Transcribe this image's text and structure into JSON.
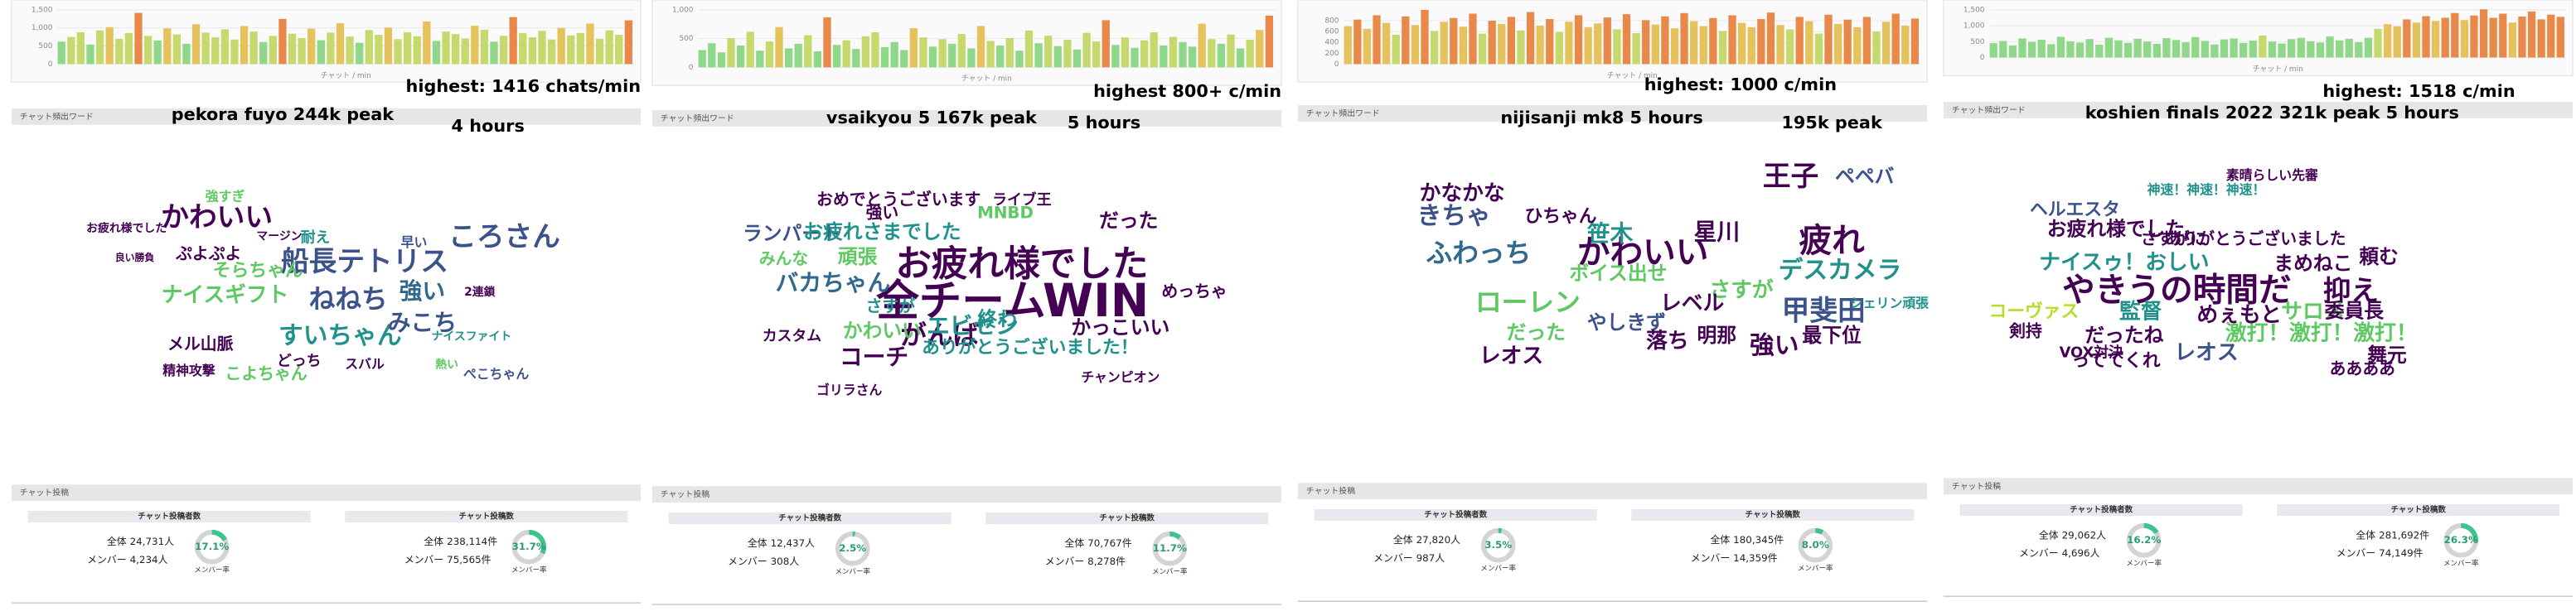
{
  "panels": [
    {
      "titles": [
        "pekora fuyo 244k peak",
        "4 hours"
      ],
      "highest": "highest: 1416 chats/min",
      "chart": {
        "xlabel": "チャット / min",
        "ylim": [
          0,
          1500
        ],
        "yticks": [
          0,
          500,
          {
            "value": 1000,
            "label": "1,000"
          },
          {
            "value": 1500,
            "label": "1,500"
          }
        ],
        "values": [
          620,
          750,
          880,
          540,
          930,
          1020,
          700,
          860,
          1416,
          780,
          650,
          990,
          820,
          560,
          1100,
          870,
          740,
          960,
          680,
          1050,
          900,
          610,
          780,
          1250,
          840,
          720,
          980,
          660,
          870,
          1130,
          760,
          590,
          940,
          810,
          1010,
          690,
          880,
          770,
          1180,
          640,
          900,
          830,
          710,
          1060,
          950,
          620,
          780,
          1300,
          860,
          740,
          920,
          680,
          1000,
          790,
          860,
          1120,
          700,
          930,
          810,
          1210
        ]
      },
      "words_heading": "チャット頻出ワード",
      "words": [
        "船長テトリス",
        "かわいい",
        "ころさん",
        "ねねち",
        "すいちゃん",
        "ナイスギフト",
        "強い",
        "みこち",
        "そらちゃん",
        "メル山脈",
        "こよちゃん",
        "ぷよぷよ",
        "耐え",
        "精神攻撃",
        "スバル",
        "どっち",
        "ぺこちゃん",
        "ナイスファイト",
        "お疲れ様でした",
        "強すぎ",
        "早い",
        "2連鎖",
        "熱い",
        "良い勝負",
        "マージン"
      ],
      "posts_heading": "チャット投稿",
      "cards": [
        {
          "heading": "チャット投稿者数",
          "total_label": "全体",
          "total": "24,731人",
          "member_label": "メンバー",
          "member": "4,234人",
          "rate": {
            "value": 17.1,
            "label": "17.1%"
          },
          "rate_caption": "メンバー率"
        },
        {
          "heading": "チャット投稿数",
          "total_label": "全体",
          "total": "238,114件",
          "member_label": "メンバー",
          "member": "75,565件",
          "rate": {
            "value": 31.7,
            "label": "31.7%"
          },
          "rate_caption": "メンバー率"
        }
      ]
    },
    {
      "titles": [
        "vsaikyou 5 167k peak",
        "5 hours"
      ],
      "highest": "highest 800+ c/min",
      "chart": {
        "xlabel": "チャット / min",
        "ylim": [
          0,
          1000
        ],
        "yticks": [
          0,
          500,
          {
            "value": 1000,
            "label": "1,000"
          }
        ],
        "values": [
          300,
          420,
          260,
          510,
          380,
          620,
          290,
          450,
          700,
          330,
          410,
          560,
          280,
          870,
          390,
          470,
          320,
          540,
          610,
          350,
          440,
          300,
          680,
          520,
          360,
          490,
          410,
          580,
          330,
          720,
          460,
          380,
          510,
          290,
          640,
          420,
          550,
          370,
          480,
          310,
          600,
          450,
          820,
          390,
          520,
          340,
          470,
          610,
          380,
          530,
          440,
          360,
          760,
          490,
          410,
          570,
          330,
          480,
          650,
          900
        ]
      },
      "words_heading": "チャット頻出ワード",
      "words": [
        "全チーム",
        "WIN",
        "お疲れ様でした",
        "がんば",
        "コーチ",
        "バカちゃん",
        "ランパート",
        "お疲れさまでした",
        "おめでとうございます",
        "ありがとうございました！",
        "エビセン",
        "かわいい",
        "かっこいい",
        "めっちゃ",
        "頑張",
        "終わ",
        "だった",
        "MNBD",
        "ライブ王",
        "強い",
        "ゴリラさん",
        "チャンピオン",
        "みんな",
        "カスタム",
        "さすが"
      ],
      "posts_heading": "チャット投稿",
      "cards": [
        {
          "heading": "チャット投稿者数",
          "total_label": "全体",
          "total": "12,437人",
          "member_label": "メンバー",
          "member": "308人",
          "rate": {
            "value": 2.5,
            "label": "2.5%"
          },
          "rate_caption": "メンバー率"
        },
        {
          "heading": "チャット投稿数",
          "total_label": "全体",
          "total": "70,767件",
          "member_label": "メンバー",
          "member": "8,278件",
          "rate": {
            "value": 11.7,
            "label": "11.7%"
          },
          "rate_caption": "メンバー率"
        }
      ]
    },
    {
      "titles": [
        "nijisanji mk8 5 hours",
        "195k peak"
      ],
      "highest": "highest: 1000 c/min",
      "chart": {
        "xlabel": "チャット / min",
        "ylim": [
          0,
          1000
        ],
        "yticks": [
          0,
          200,
          400,
          600,
          800
        ],
        "values": [
          700,
          820,
          650,
          900,
          760,
          540,
          880,
          720,
          1000,
          610,
          780,
          850,
          690,
          930,
          560,
          800,
          740,
          870,
          620,
          960,
          710,
          830,
          590,
          780,
          900,
          680,
          750,
          860,
          640,
          920,
          570,
          810,
          730,
          880,
          660,
          940,
          790,
          700,
          850,
          610,
          900,
          760,
          680,
          830,
          950,
          720,
          640,
          870,
          790,
          560,
          910,
          740,
          820,
          680,
          870,
          600,
          780,
          930,
          710,
          840
        ]
      },
      "words_heading": "チャット頻出ワード",
      "words": [
        "かわいい",
        "王子",
        "疲れ",
        "デスカメラ",
        "甲斐田",
        "ローレン",
        "ふわっち",
        "きちゃ",
        "かなかな",
        "笹木",
        "星川",
        "レオス",
        "やしきず",
        "落ち",
        "強い",
        "さすが",
        "レベル",
        "明那",
        "最下位",
        "ボイス出せ",
        "だった",
        "ひちゃん",
        "ペペバ",
        "シェリン頑張"
      ],
      "posts_heading": "チャット投稿",
      "cards": [
        {
          "heading": "チャット投稿者数",
          "total_label": "全体",
          "total": "27,820人",
          "member_label": "メンバー",
          "member": "987人",
          "rate": {
            "value": 3.5,
            "label": "3.5%"
          },
          "rate_caption": "メンバー率"
        },
        {
          "heading": "チャット投稿数",
          "total_label": "全体",
          "total": "180,345件",
          "member_label": "メンバー",
          "member": "14,359件",
          "rate": {
            "value": 8,
            "label": "8.0%"
          },
          "rate_caption": "メンバー率"
        }
      ]
    },
    {
      "titles": [
        "koshien finals 2022 321k peak 5 hours"
      ],
      "highest": "highest: 1518 c/min",
      "chart": {
        "xlabel": "チャット / min",
        "ylim": [
          0,
          1500
        ],
        "yticks": [
          0,
          500,
          {
            "value": 1000,
            "label": "1,000"
          },
          {
            "value": 1500,
            "label": "1,500"
          }
        ],
        "values": [
          450,
          520,
          380,
          600,
          490,
          560,
          420,
          650,
          510,
          470,
          580,
          400,
          620,
          540,
          460,
          590,
          500,
          430,
          610,
          550,
          480,
          640,
          520,
          410,
          570,
          600,
          460,
          530,
          690,
          500,
          440,
          580,
          620,
          510,
          470,
          660,
          540,
          590,
          480,
          620,
          900,
          1050,
          980,
          1200,
          1100,
          1300,
          1150,
          1250,
          1400,
          1180,
          1320,
          1518,
          1250,
          1380,
          1100,
          1290,
          1450,
          1200,
          1350,
          1280
        ]
      },
      "words_heading": "チャット頻出ワード",
      "words": [
        "やきうの時間だ",
        "抑え",
        "激打！激打！激打！",
        "ナイスゥ！おしい",
        "お疲れ様でした",
        "めぇもと",
        "だったね",
        "レオス",
        "サロメ",
        "っててくれ",
        "監督",
        "コーヴァス",
        "剣持",
        "ヘルエスタ",
        "さすがに",
        "ありがとうございました",
        "委員長",
        "舞元",
        "素晴らしい先審",
        "神速！神速！神速！",
        "まめねこ",
        "頼む",
        "ああああ",
        "VOX対決"
      ],
      "posts_heading": "チャット投稿",
      "cards": [
        {
          "heading": "チャット投稿者数",
          "total_label": "全体",
          "total": "29,062人",
          "member_label": "メンバー",
          "member": "4,696人",
          "rate": {
            "value": 16.2,
            "label": "16.2%"
          },
          "rate_caption": "メンバー率"
        },
        {
          "heading": "チャット投稿数",
          "total_label": "全体",
          "total": "281,692件",
          "member_label": "メンバー",
          "member": "74,149件",
          "rate": {
            "value": 26.3,
            "label": "26.3%"
          },
          "rate_caption": "メンバー率"
        }
      ]
    }
  ]
}
